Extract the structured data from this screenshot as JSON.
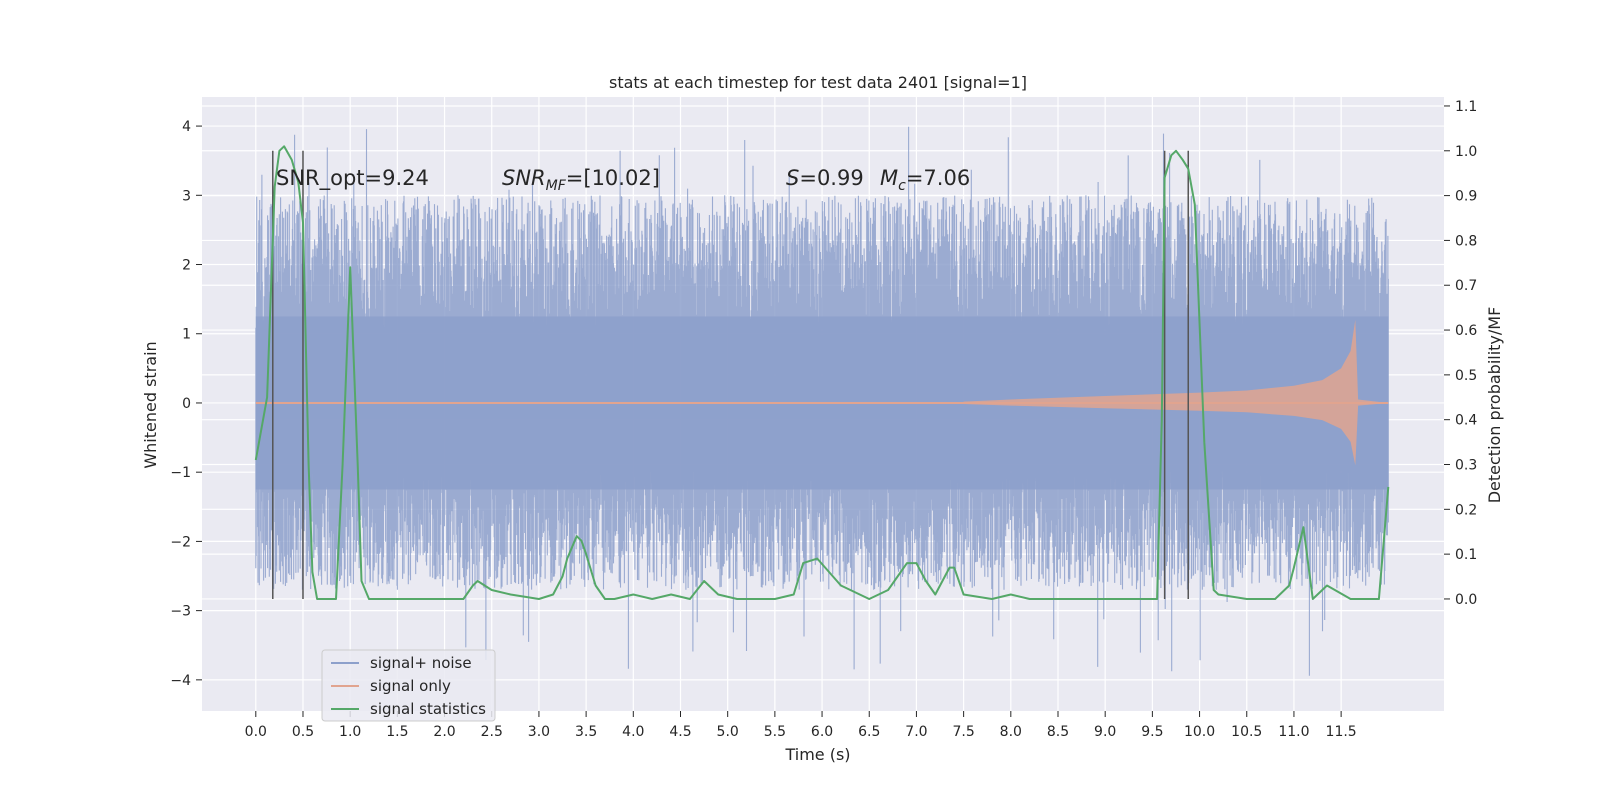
{
  "chart_data": {
    "type": "line",
    "title": "stats at each timestep for test data 2401 [signal=1]",
    "xlabel": "Time (s)",
    "ylabel": "Whitened strain",
    "y2label": "Detection probability/MF",
    "xlim": [
      -0.57,
      12.59
    ],
    "ylim": [
      -4.45,
      4.42
    ],
    "y2lim": [
      -0.25,
      1.12
    ],
    "grid": true,
    "legend_placement": "lower-left",
    "x_ticks": [
      "0.0",
      "0.5",
      "1.0",
      "1.5",
      "2.0",
      "2.5",
      "3.0",
      "3.5",
      "4.0",
      "4.5",
      "5.0",
      "5.5",
      "6.0",
      "6.5",
      "7.0",
      "7.5",
      "8.0",
      "8.5",
      "9.0",
      "9.5",
      "10.0",
      "10.5",
      "11.0",
      "11.5"
    ],
    "y_ticks": [
      "4",
      "3",
      "2",
      "1",
      "0",
      "−1",
      "−2",
      "−3",
      "−4"
    ],
    "y2_ticks": [
      "1.1",
      "1.0",
      "0.9",
      "0.8",
      "0.7",
      "0.6",
      "0.5",
      "0.4",
      "0.3",
      "0.2",
      "0.1",
      "0.0"
    ],
    "annotations": {
      "snr_opt": "SNR_opt=9.24",
      "snr_mf": "SNR_MF=[10.02]",
      "s_value": "S=0.99",
      "mc_value": "M_c=7.06"
    },
    "vertical_lines_x": [
      0.18,
      0.5,
      9.63,
      9.88
    ],
    "series": [
      {
        "name": "signal+ noise",
        "color": "#8da0cb",
        "x_range": [
          0.0,
          12.0
        ],
        "typical_range": [
          -2.7,
          3.0
        ],
        "max": 4.0,
        "min": -4.1
      },
      {
        "name": "signal only",
        "color": "#e1a48f",
        "envelope": {
          "t": [
            7.5,
            8.0,
            9.0,
            10.0,
            10.5,
            11.0,
            11.3,
            11.5,
            11.6,
            11.65,
            11.68,
            12.0
          ],
          "amp": [
            0.02,
            0.05,
            0.1,
            0.15,
            0.18,
            0.25,
            0.33,
            0.5,
            0.75,
            1.2,
            0.05,
            0.0
          ]
        }
      },
      {
        "name": "signal statistics",
        "color": "#55a868",
        "x": [
          0.0,
          0.12,
          0.2,
          0.25,
          0.3,
          0.38,
          0.45,
          0.5,
          0.56,
          0.6,
          0.65,
          0.75,
          0.85,
          0.92,
          1.0,
          1.08,
          1.12,
          1.2,
          1.3,
          1.5,
          2.0,
          2.2,
          2.3,
          2.35,
          2.5,
          2.7,
          3.0,
          3.15,
          3.25,
          3.3,
          3.4,
          3.45,
          3.5,
          3.6,
          3.7,
          3.8,
          4.0,
          4.2,
          4.4,
          4.6,
          4.75,
          4.9,
          5.1,
          5.3,
          5.5,
          5.7,
          5.8,
          5.95,
          6.2,
          6.5,
          6.7,
          6.8,
          6.9,
          7.0,
          7.1,
          7.2,
          7.35,
          7.4,
          7.5,
          7.8,
          8.0,
          8.2,
          8.4,
          8.6,
          9.0,
          9.4,
          9.55,
          9.6,
          9.63,
          9.7,
          9.75,
          9.82,
          9.88,
          9.95,
          10.05,
          10.15,
          10.2,
          10.5,
          10.8,
          10.95,
          11.0,
          11.1,
          11.2,
          11.35,
          11.6,
          11.8,
          11.9,
          12.0
        ],
        "values": [
          0.31,
          0.45,
          0.92,
          1.0,
          1.01,
          0.98,
          0.93,
          0.84,
          0.3,
          0.06,
          0.0,
          0.0,
          0.0,
          0.3,
          0.74,
          0.3,
          0.04,
          0.0,
          0.0,
          0.0,
          0.0,
          0.0,
          0.03,
          0.04,
          0.02,
          0.01,
          0.0,
          0.01,
          0.05,
          0.09,
          0.14,
          0.13,
          0.1,
          0.03,
          0.0,
          0.0,
          0.01,
          0.0,
          0.01,
          0.0,
          0.04,
          0.01,
          0.0,
          0.0,
          0.0,
          0.01,
          0.08,
          0.09,
          0.03,
          0.0,
          0.02,
          0.05,
          0.08,
          0.08,
          0.04,
          0.01,
          0.07,
          0.07,
          0.01,
          0.0,
          0.01,
          0.0,
          0.0,
          0.0,
          0.0,
          0.0,
          0.0,
          0.4,
          0.94,
          0.99,
          1.0,
          0.98,
          0.96,
          0.88,
          0.35,
          0.02,
          0.01,
          0.0,
          0.0,
          0.03,
          0.07,
          0.16,
          0.0,
          0.03,
          0.0,
          0.0,
          0.0,
          0.25
        ]
      }
    ]
  }
}
